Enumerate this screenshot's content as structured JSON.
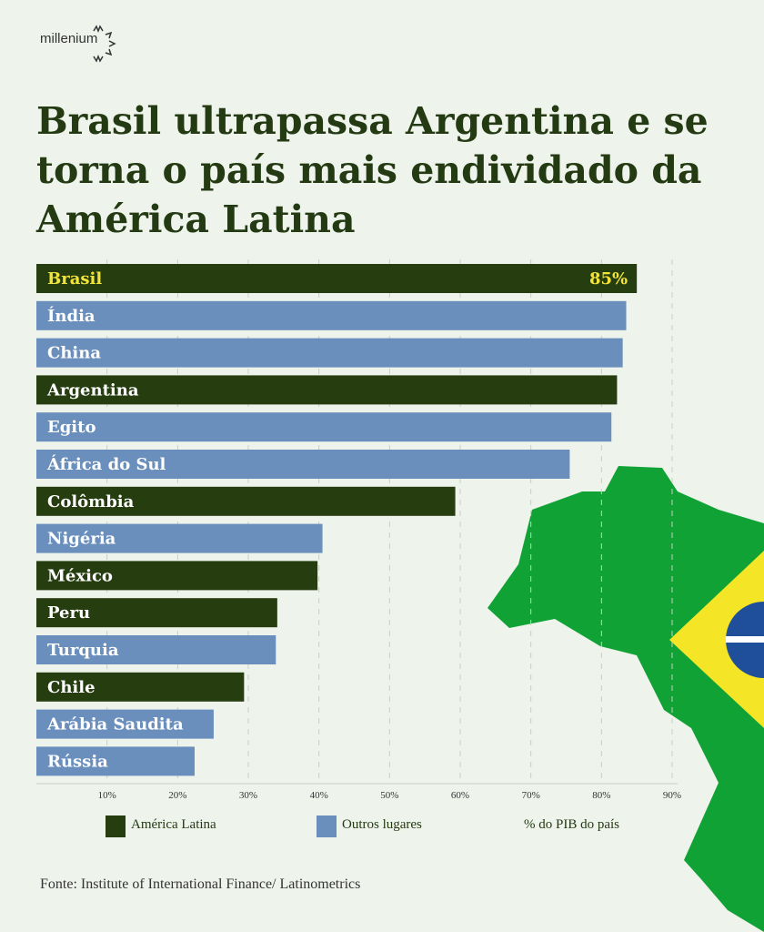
{
  "brand": "millenium",
  "title": "Brasil ultrapassa Argentina e se torna o país mais endividado da América Latina",
  "colors": {
    "latin_america": "#263d10",
    "other": "#6a8fbc",
    "highlight_label": "#f2e43a",
    "map_green": "#10a234",
    "map_yellow": "#f4e626",
    "map_blue": "#1f4f9a"
  },
  "chart_data": {
    "type": "bar",
    "orientation": "horizontal",
    "categories": [
      "Brasil",
      "Índia",
      "China",
      "Argentina",
      "Egito",
      "África do Sul",
      "Colômbia",
      "Nigéria",
      "México",
      "Peru",
      "Turquia",
      "Chile",
      "Arábia Saudita",
      "Rússia"
    ],
    "values": [
      85,
      83.5,
      83,
      82.2,
      81.4,
      75.5,
      59.3,
      40.5,
      39.8,
      34.1,
      33.9,
      29.4,
      25.1,
      22.4
    ],
    "groups": [
      "América Latina",
      "Outros lugares",
      "Outros lugares",
      "América Latina",
      "Outros lugares",
      "Outros lugares",
      "América Latina",
      "Outros lugares",
      "América Latina",
      "América Latina",
      "Outros lugares",
      "América Latina",
      "Outros lugares",
      "Outros lugares"
    ],
    "data_labels": {
      "Brasil": "85%"
    },
    "xlim": [
      0,
      90
    ],
    "xticks": [
      "10%",
      "20%",
      "30%",
      "40%",
      "50%",
      "60%",
      "70%",
      "80%",
      "90%"
    ],
    "grid": "vertical dashed",
    "legend": [
      {
        "name": "América Latina",
        "color": "#263d10"
      },
      {
        "name": "Outros lugares",
        "color": "#6a8fbc"
      }
    ],
    "unit_label": "% do PIB do país",
    "legend_placement": "bottom"
  },
  "source": "Fonte: Institute of International Finance/ Latinometrics"
}
